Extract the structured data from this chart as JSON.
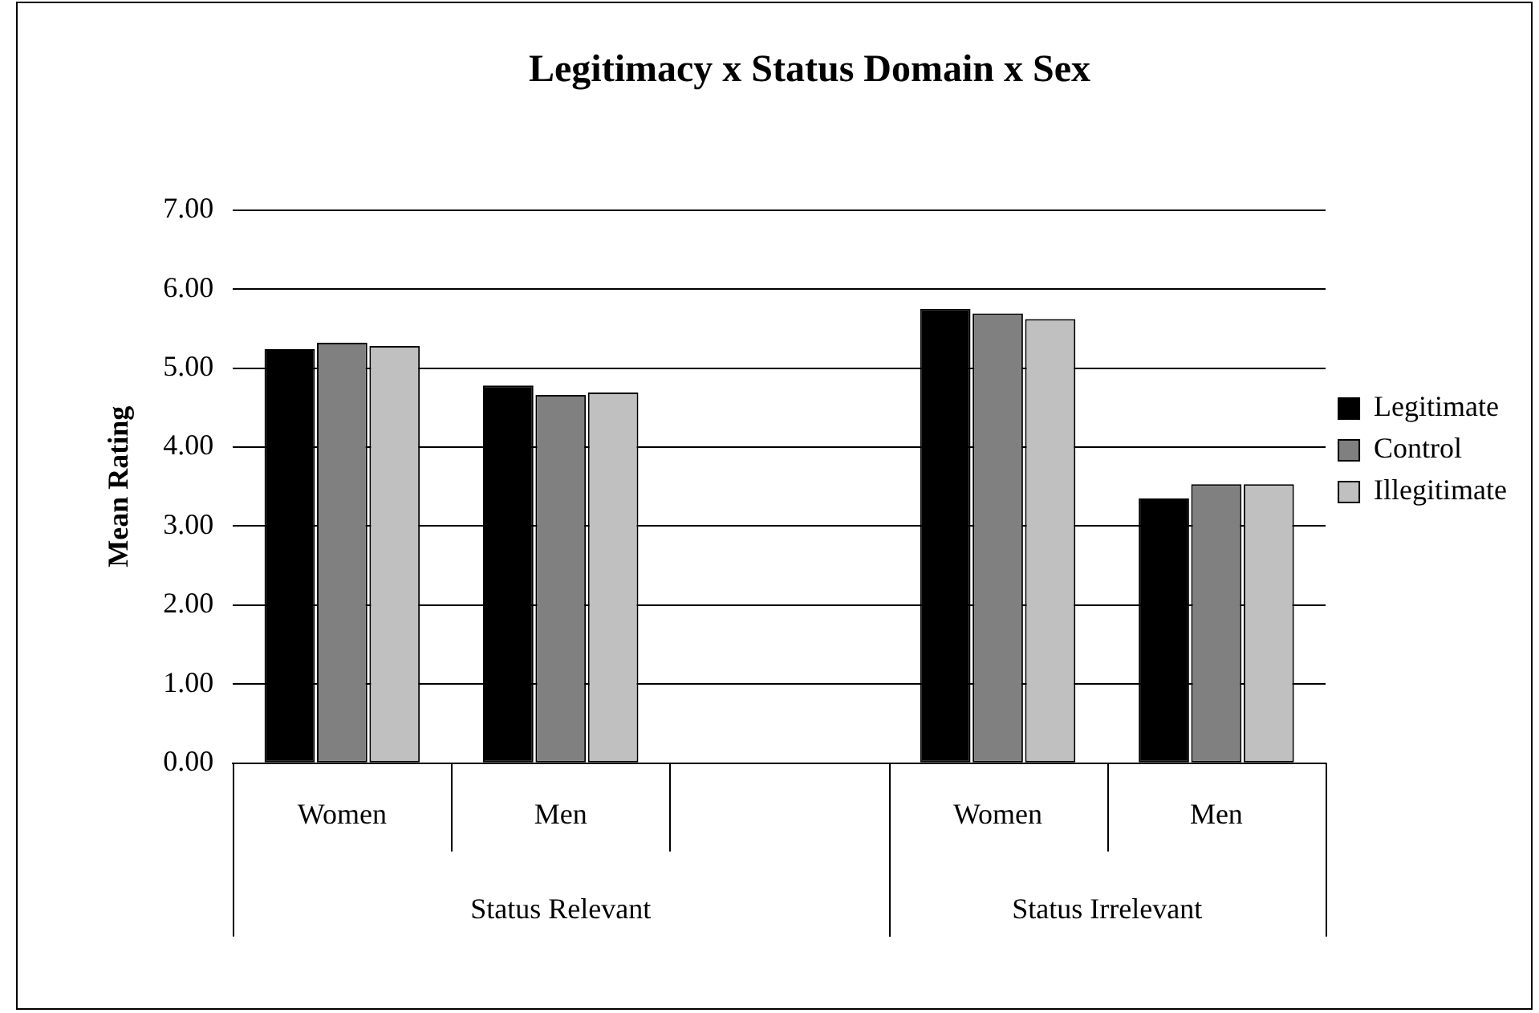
{
  "chart_data": {
    "type": "bar",
    "title": "Legitimacy x Status Domain x Sex",
    "ylabel": "Mean Rating",
    "categories": [
      "Women",
      "Men",
      null,
      "Women",
      "Men"
    ],
    "series": [
      {
        "name": "Legitimate",
        "color": "#000000",
        "values": [
          5.24,
          4.78,
          null,
          5.75,
          3.35
        ]
      },
      {
        "name": "Control",
        "color": "#808080",
        "values": [
          5.32,
          4.66,
          null,
          5.69,
          3.53
        ]
      },
      {
        "name": "Illegitimate",
        "color": "#c0c0c0",
        "values": [
          5.28,
          4.69,
          null,
          5.62,
          3.53
        ]
      }
    ],
    "ylim": [
      0,
      7
    ],
    "yticks": [
      {
        "value": 0,
        "label": "0.00"
      },
      {
        "value": 1,
        "label": "1.00"
      },
      {
        "value": 2,
        "label": "2.00"
      },
      {
        "value": 3,
        "label": "3.00"
      },
      {
        "value": 4,
        "label": "4.00"
      },
      {
        "value": 5,
        "label": "5.00"
      },
      {
        "value": 6,
        "label": "6.00"
      },
      {
        "value": 7,
        "label": "7.00"
      }
    ],
    "grid": "y",
    "legend": "right",
    "annotations": [
      "Status Relevant",
      "Status Irrelevant"
    ]
  }
}
